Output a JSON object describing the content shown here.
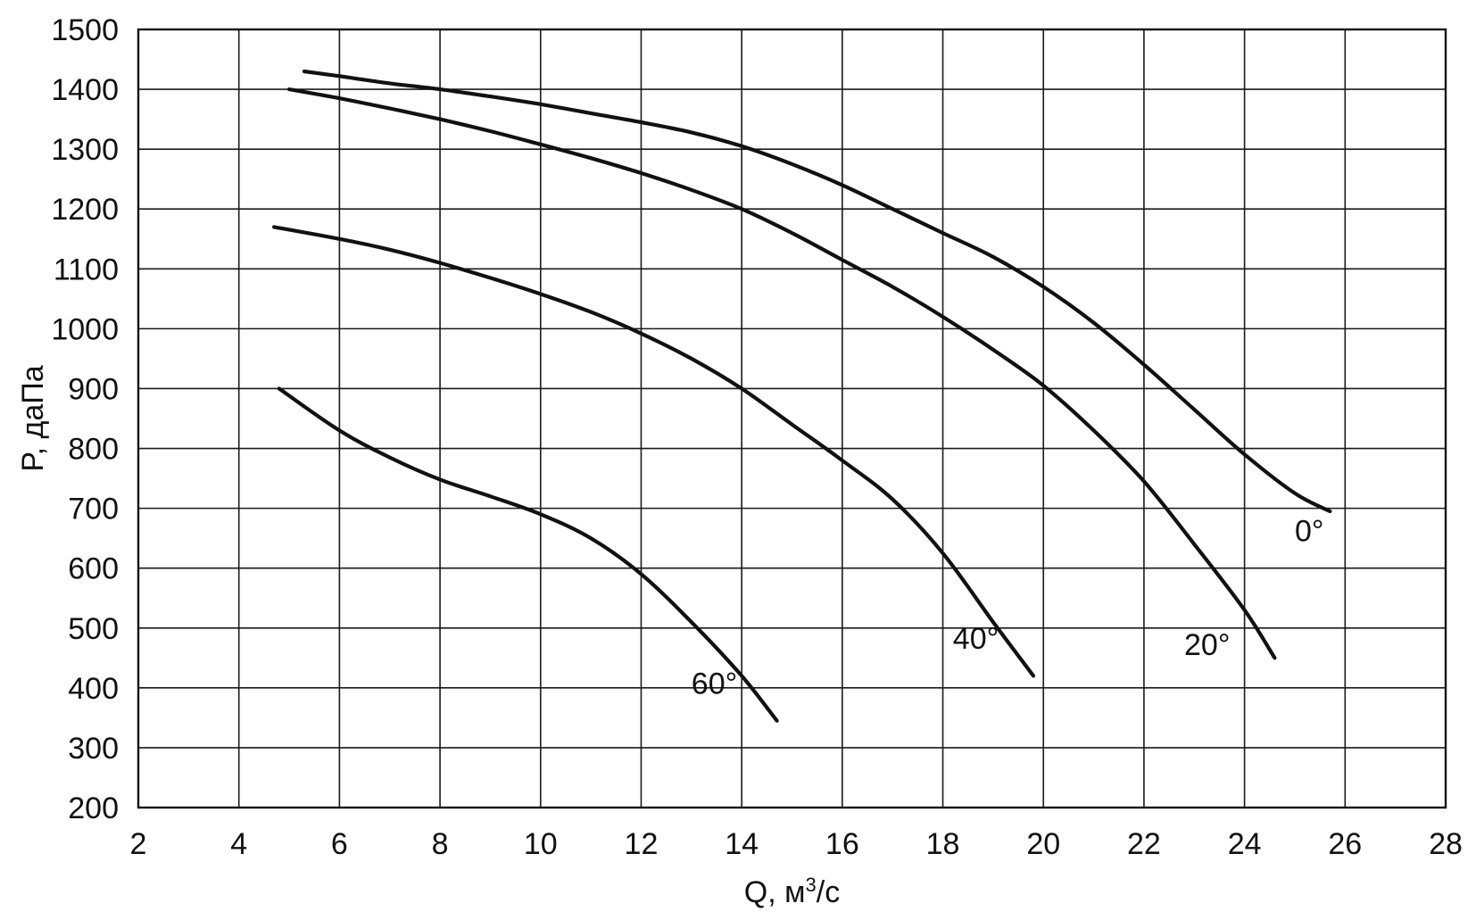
{
  "chart_data": {
    "type": "line",
    "title": "",
    "xlabel": "Q, м",
    "xlabel_sup": "3",
    "xlabel_unit_tail": "/с",
    "ylabel": "P, даПа",
    "xlim": [
      2,
      28
    ],
    "ylim": [
      200,
      1500
    ],
    "xticks": [
      "2",
      "4",
      "6",
      "8",
      "10",
      "12",
      "14",
      "16",
      "18",
      "20",
      "22",
      "24",
      "26",
      "28"
    ],
    "yticks": [
      "200",
      "300",
      "400",
      "500",
      "600",
      "700",
      "800",
      "900",
      "1000",
      "1100",
      "1200",
      "1300",
      "1400",
      "1500"
    ],
    "grid": true,
    "series": [
      {
        "name": "0°",
        "x": [
          5.3,
          6,
          7,
          8,
          9,
          10,
          11,
          12,
          13,
          14,
          15,
          16,
          17,
          18,
          19,
          20,
          21,
          22,
          23,
          24,
          25,
          25.7
        ],
        "y": [
          1430,
          1422,
          1410,
          1400,
          1388,
          1375,
          1360,
          1345,
          1328,
          1305,
          1275,
          1240,
          1200,
          1160,
          1120,
          1070,
          1010,
          940,
          865,
          790,
          725,
          695
        ]
      },
      {
        "name": "20°",
        "x": [
          5.0,
          6,
          7,
          8,
          9,
          10,
          11,
          12,
          13,
          14,
          15,
          16,
          17,
          18,
          19,
          20,
          21,
          22,
          23,
          24,
          24.6
        ],
        "y": [
          1400,
          1385,
          1368,
          1350,
          1330,
          1308,
          1285,
          1260,
          1232,
          1200,
          1160,
          1115,
          1070,
          1020,
          965,
          905,
          830,
          745,
          640,
          530,
          450
        ]
      },
      {
        "name": "40°",
        "x": [
          4.7,
          6,
          7,
          8,
          9,
          10,
          11,
          12,
          13,
          14,
          15,
          16,
          17,
          18,
          19,
          19.8
        ],
        "y": [
          1170,
          1150,
          1132,
          1110,
          1085,
          1058,
          1028,
          992,
          950,
          900,
          840,
          780,
          715,
          625,
          510,
          420
        ]
      },
      {
        "name": "60°",
        "x": [
          4.8,
          6,
          7,
          8,
          9,
          10,
          11,
          12,
          13,
          14,
          14.7
        ],
        "y": [
          900,
          830,
          785,
          748,
          720,
          690,
          650,
          590,
          510,
          420,
          345
        ]
      }
    ],
    "annotations": [
      {
        "text": "0°",
        "x": 25.0,
        "y": 645
      },
      {
        "text": "20°",
        "x": 22.8,
        "y": 455
      },
      {
        "text": "40°",
        "x": 18.2,
        "y": 465
      },
      {
        "text": "60°",
        "x": 13.0,
        "y": 390
      }
    ]
  }
}
